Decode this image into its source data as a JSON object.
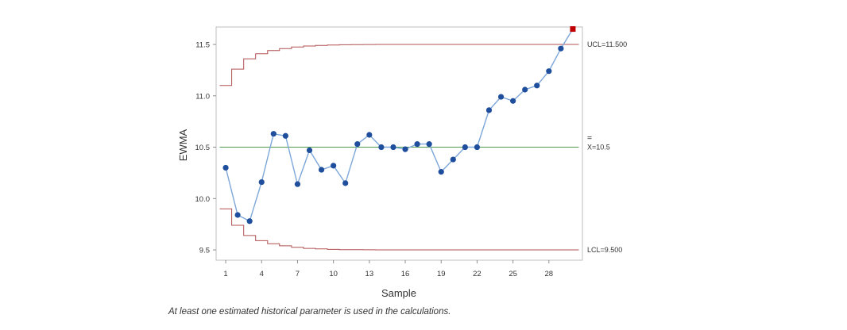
{
  "chart_data": {
    "type": "line",
    "title": "",
    "xlabel": "Sample",
    "ylabel": "EWMA",
    "x_ticks": [
      1,
      4,
      7,
      10,
      13,
      16,
      19,
      22,
      25,
      28
    ],
    "y_ticks": [
      "9.5",
      "10.0",
      "10.5",
      "11.0",
      "11.5"
    ],
    "xlim": [
      0.2,
      30.8
    ],
    "ylim": [
      9.4,
      11.67
    ],
    "series": [
      {
        "x": [
          1,
          2,
          3,
          4,
          5,
          6,
          7,
          8,
          9,
          10,
          11,
          12,
          13,
          14,
          15,
          16,
          17,
          18,
          19,
          20,
          21,
          22,
          23,
          24,
          25,
          26,
          27,
          28,
          29,
          30
        ],
        "values": [
          10.3,
          9.84,
          9.78,
          10.16,
          10.63,
          10.61,
          10.14,
          10.47,
          10.28,
          10.32,
          10.15,
          10.53,
          10.62,
          10.5,
          10.5,
          10.48,
          10.53,
          10.53,
          10.26,
          10.38,
          10.5,
          10.5,
          10.86,
          10.99,
          10.95,
          11.06,
          11.1,
          11.24,
          11.46,
          11.65
        ],
        "color": "#1f4e9c",
        "line_color": "#7da7d9",
        "out_of_control": [
          30
        ],
        "out_of_control_color": "#c00000"
      }
    ],
    "center_line": {
      "value": 10.5,
      "label": "X=10.5",
      "color": "#4e9a4e"
    },
    "ucl": {
      "value": 11.5,
      "label": "UCL=11.500",
      "color": "#b05050",
      "steps": [
        11.1,
        11.26,
        11.36,
        11.41,
        11.44,
        11.46,
        11.475,
        11.485,
        11.49,
        11.495,
        11.497,
        11.498,
        11.499,
        11.5,
        11.5,
        11.5,
        11.5,
        11.5,
        11.5,
        11.5,
        11.5,
        11.5,
        11.5,
        11.5,
        11.5,
        11.5,
        11.5,
        11.5,
        11.5,
        11.5
      ]
    },
    "lcl": {
      "value": 9.5,
      "label": "LCL=9.500",
      "color": "#b05050",
      "steps": [
        9.9,
        9.74,
        9.64,
        9.59,
        9.56,
        9.54,
        9.525,
        9.515,
        9.51,
        9.505,
        9.503,
        9.502,
        9.501,
        9.5,
        9.5,
        9.5,
        9.5,
        9.5,
        9.5,
        9.5,
        9.5,
        9.5,
        9.5,
        9.5,
        9.5,
        9.5,
        9.5,
        9.5,
        9.5,
        9.5
      ]
    },
    "grid": false,
    "legend": "none"
  },
  "footnote": "At least one estimated historical parameter is used in the calculations."
}
